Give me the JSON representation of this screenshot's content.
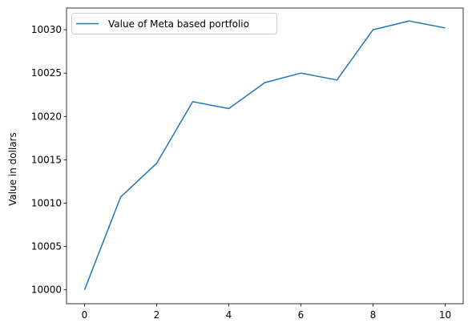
{
  "chart_data": {
    "type": "line",
    "title": "",
    "xlabel": "",
    "ylabel": "Value in dollars",
    "x": [
      0,
      1,
      2,
      3,
      4,
      5,
      6,
      7,
      8,
      9,
      10
    ],
    "series": [
      {
        "name": "Value of Meta based portfolio",
        "values": [
          10000.0,
          10010.7,
          10014.6,
          10021.7,
          10020.9,
          10023.9,
          10025.0,
          10024.2,
          10030.0,
          10031.0,
          10030.2
        ]
      }
    ],
    "xlim": [
      -0.5,
      10.5
    ],
    "ylim": [
      9998.4,
      10032.5
    ],
    "xticks": [
      0,
      2,
      4,
      6,
      8,
      10
    ],
    "yticks": [
      10000,
      10005,
      10010,
      10015,
      10020,
      10025,
      10030
    ],
    "grid": false,
    "legend_position": "upper-left",
    "colors": {
      "series": "#1f77b4",
      "axes": "#000000",
      "background": "#ffffff"
    }
  }
}
